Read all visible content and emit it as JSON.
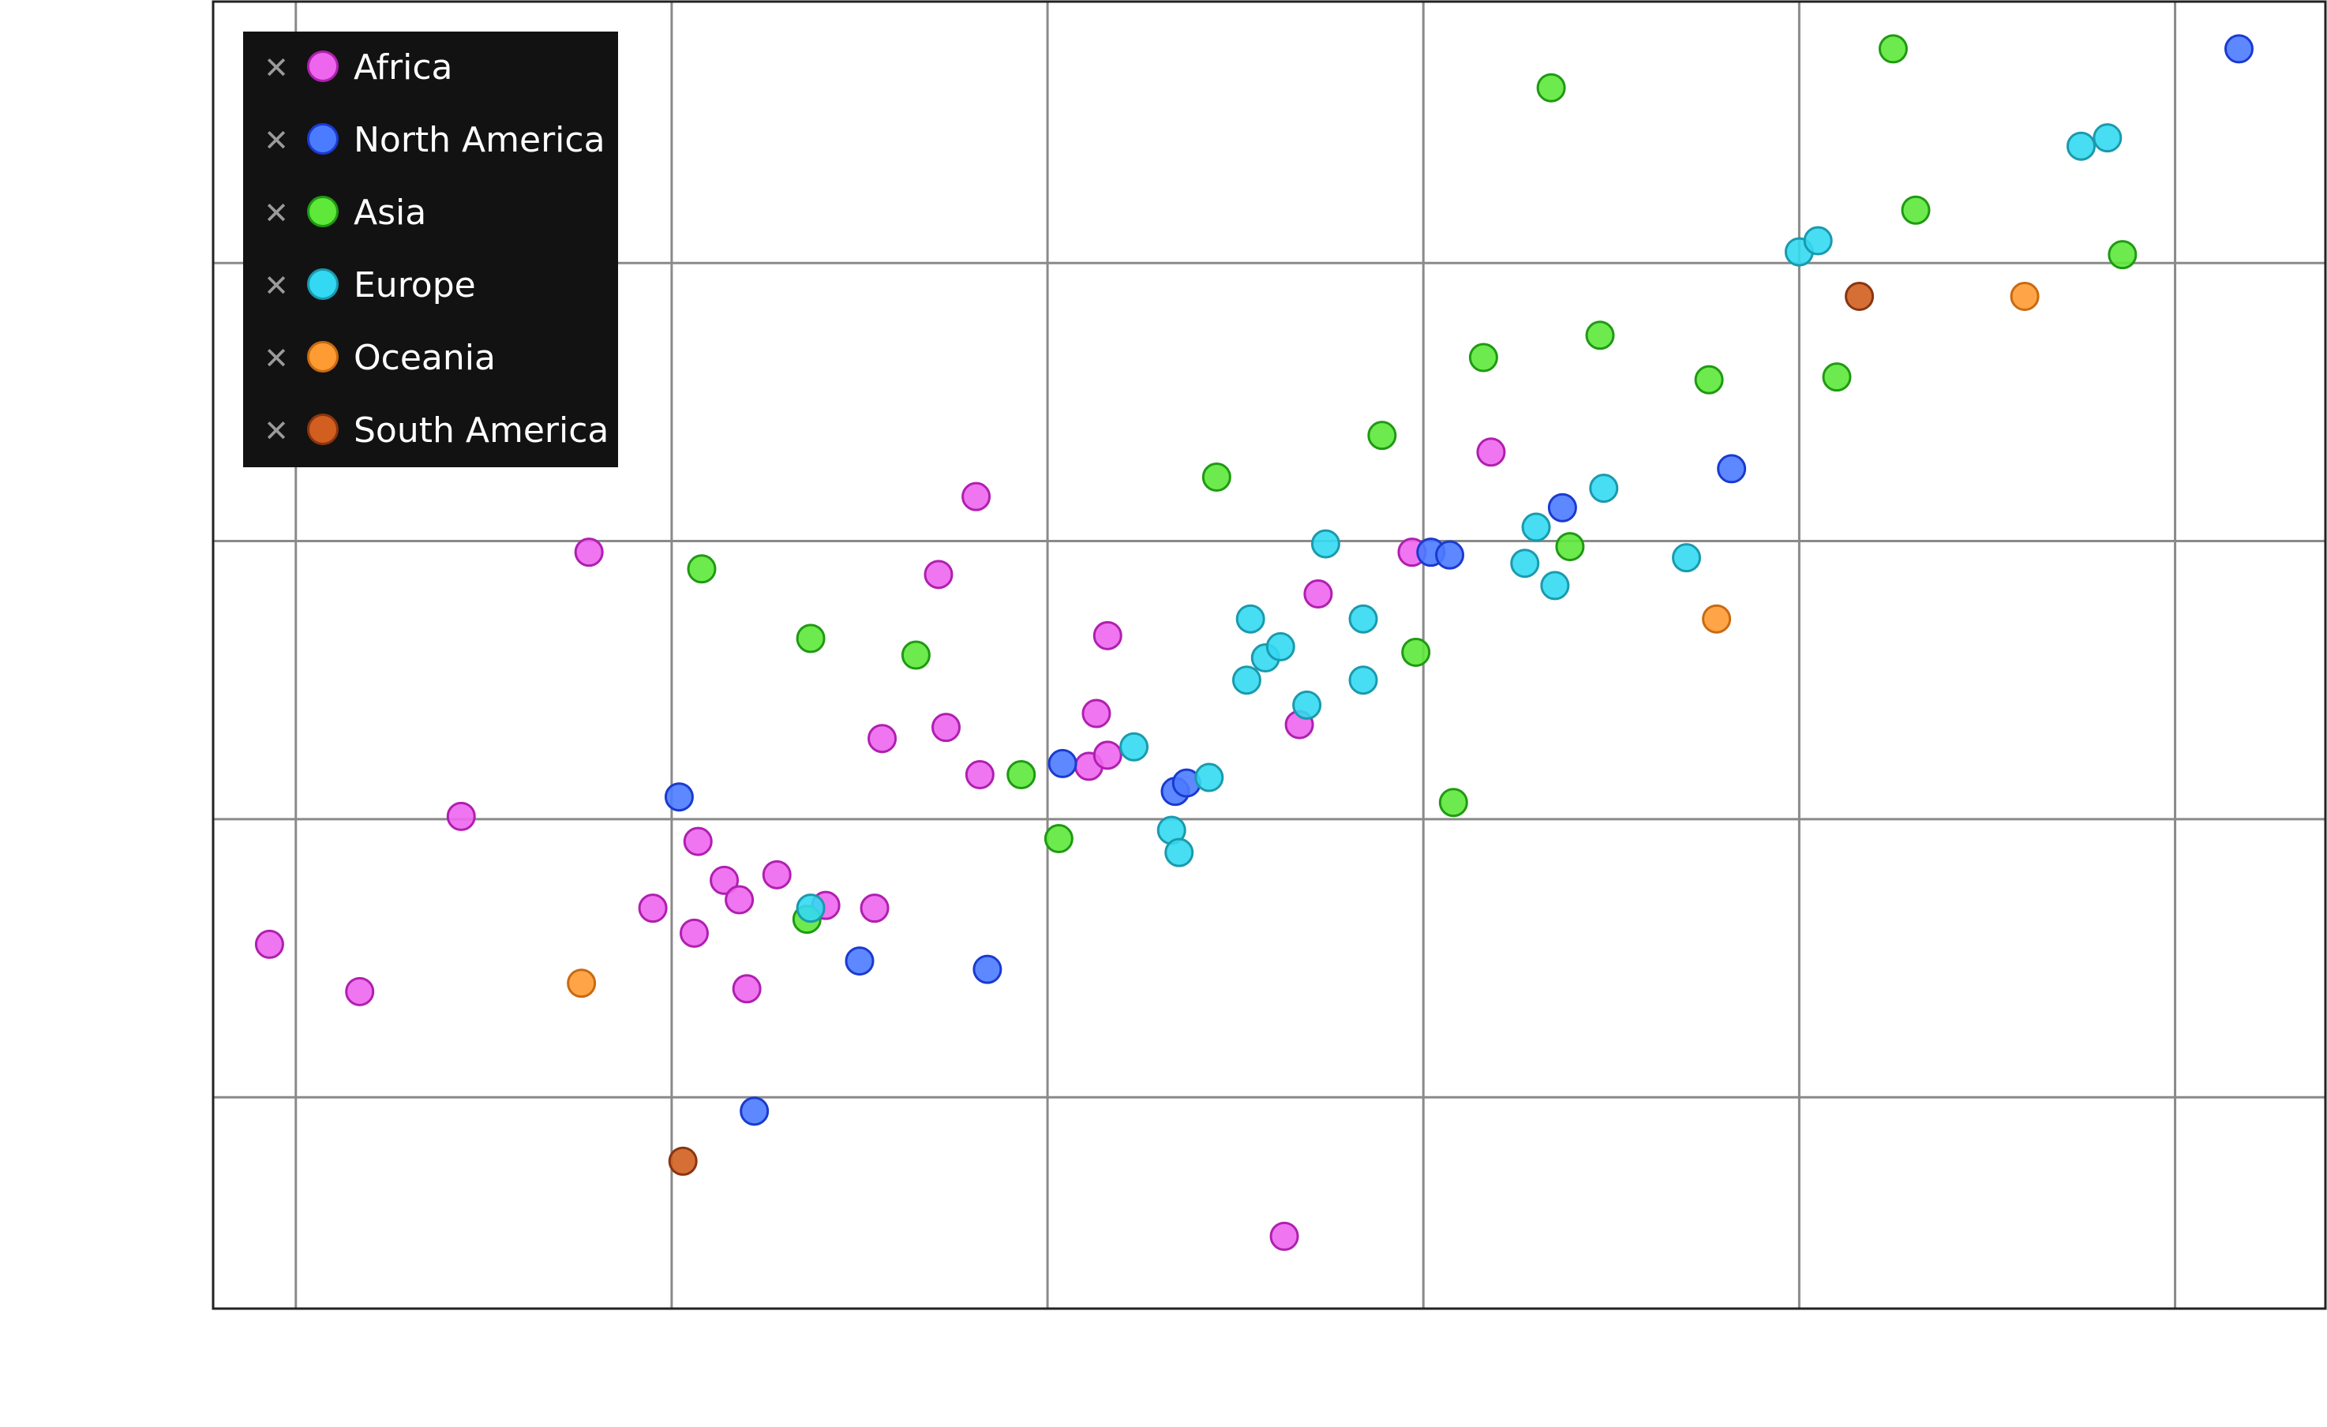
{
  "chart_data": {
    "type": "scatter",
    "title": "",
    "xlabel": "",
    "ylabel": "",
    "xlim": [
      -0.22,
      5.4
    ],
    "ylim": [
      -1.76,
      2.94
    ],
    "grid": true,
    "legend_position": "top-left",
    "series": [
      {
        "name": "Africa",
        "fill": "#ee66ee",
        "stroke": "#b01fb0",
        "points": [
          [
            0.78,
            0.96
          ],
          [
            -0.07,
            -0.45
          ],
          [
            0.17,
            -0.62
          ],
          [
            0.44,
            0.01
          ],
          [
            0.95,
            -0.32
          ],
          [
            1.07,
            -0.08
          ],
          [
            1.06,
            -0.41
          ],
          [
            1.14,
            -0.22
          ],
          [
            1.18,
            -0.29
          ],
          [
            1.28,
            -0.2
          ],
          [
            1.41,
            -0.31
          ],
          [
            1.54,
            -0.32
          ],
          [
            1.56,
            0.29
          ],
          [
            1.73,
            0.33
          ],
          [
            1.71,
            0.88
          ],
          [
            1.81,
            1.16
          ],
          [
            1.82,
            0.16
          ],
          [
            2.11,
            0.19
          ],
          [
            2.13,
            0.38
          ],
          [
            2.16,
            0.66
          ],
          [
            2.16,
            0.23
          ],
          [
            2.63,
            -1.5
          ],
          [
            2.67,
            0.34
          ],
          [
            2.72,
            0.81
          ],
          [
            2.97,
            0.96
          ],
          [
            3.18,
            1.32
          ],
          [
            1.2,
            -0.61
          ]
        ]
      },
      {
        "name": "North America",
        "fill": "#4b7bff",
        "stroke": "#1a3ad0",
        "points": [
          [
            1.02,
            0.08
          ],
          [
            1.22,
            -1.05
          ],
          [
            1.5,
            -0.51
          ],
          [
            1.84,
            -0.54
          ],
          [
            2.04,
            0.2
          ],
          [
            2.34,
            0.1
          ],
          [
            2.37,
            0.13
          ],
          [
            3.02,
            0.96
          ],
          [
            3.07,
            0.95
          ],
          [
            3.37,
            1.12
          ],
          [
            3.82,
            1.26
          ],
          [
            5.17,
            2.77
          ]
        ]
      },
      {
        "name": "Asia",
        "fill": "#5de83a",
        "stroke": "#1f9a12",
        "points": [
          [
            1.08,
            0.9
          ],
          [
            1.37,
            0.65
          ],
          [
            1.36,
            -0.36
          ],
          [
            1.65,
            0.59
          ],
          [
            1.93,
            0.16
          ],
          [
            2.03,
            -0.07
          ],
          [
            2.45,
            1.23
          ],
          [
            2.89,
            1.38
          ],
          [
            2.98,
            0.6
          ],
          [
            3.08,
            0.06
          ],
          [
            3.16,
            1.66
          ],
          [
            3.34,
            2.63
          ],
          [
            3.39,
            0.98
          ],
          [
            3.47,
            1.74
          ],
          [
            3.76,
            1.58
          ],
          [
            4.1,
            1.59
          ],
          [
            4.25,
            2.77
          ],
          [
            4.31,
            2.19
          ],
          [
            4.86,
            2.03
          ]
        ]
      },
      {
        "name": "Europe",
        "fill": "#33d9f2",
        "stroke": "#1a9aad",
        "points": [
          [
            1.37,
            -0.32
          ],
          [
            2.23,
            0.26
          ],
          [
            2.33,
            -0.04
          ],
          [
            2.35,
            -0.12
          ],
          [
            2.43,
            0.15
          ],
          [
            2.53,
            0.5
          ],
          [
            2.54,
            0.72
          ],
          [
            2.58,
            0.58
          ],
          [
            2.62,
            0.62
          ],
          [
            2.69,
            0.41
          ],
          [
            2.74,
            0.99
          ],
          [
            2.84,
            0.72
          ],
          [
            2.84,
            0.5
          ],
          [
            3.27,
            0.92
          ],
          [
            3.3,
            1.05
          ],
          [
            3.35,
            0.84
          ],
          [
            3.48,
            1.19
          ],
          [
            3.7,
            0.94
          ],
          [
            4.0,
            2.04
          ],
          [
            4.05,
            2.08
          ],
          [
            4.75,
            2.42
          ],
          [
            4.82,
            2.45
          ]
        ]
      },
      {
        "name": "Oceania",
        "fill": "#ff9b33",
        "stroke": "#c96a10",
        "points": [
          [
            0.76,
            -0.59
          ],
          [
            3.78,
            0.72
          ],
          [
            4.6,
            1.88
          ]
        ]
      },
      {
        "name": "South America",
        "fill": "#d25f1f",
        "stroke": "#8a3510",
        "points": [
          [
            1.03,
            -1.23
          ],
          [
            4.16,
            1.88
          ]
        ]
      }
    ]
  }
}
